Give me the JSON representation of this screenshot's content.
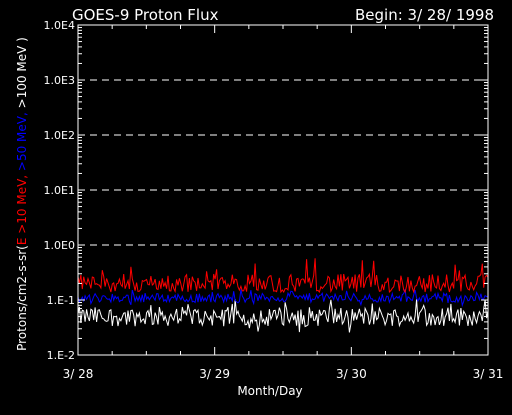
{
  "chart_data": {
    "type": "line",
    "title": "GOES-9  Proton Flux",
    "begin_label": "Begin:  3/ 28/ 1998",
    "xlabel": "Month/Day",
    "ylabel_parts": [
      {
        "text": "Protons/cm2-s-sr(",
        "color": "#ffffff"
      },
      {
        "text": "E >10 MeV, ",
        "color": "#ff0000"
      },
      {
        "text": ">50 MeV, ",
        "color": "#0000ff"
      },
      {
        "text": ">100 MeV )",
        "color": "#ffffff"
      }
    ],
    "x_ticks": [
      "3/ 28",
      "3/ 29",
      "3/ 30",
      "3/ 31"
    ],
    "xlim": [
      0,
      3
    ],
    "x_unit": "days after 3/28/1998",
    "y_scale": "log",
    "ylim": [
      0.01,
      10000
    ],
    "y_ticks": [
      {
        "value": 0.01,
        "label": "1.E-2"
      },
      {
        "value": 0.1,
        "label": "1.E-1"
      },
      {
        "value": 1,
        "label": "1.0E0"
      },
      {
        "value": 10,
        "label": "1.0E1"
      },
      {
        "value": 100,
        "label": "1.0E2"
      },
      {
        "value": 1000,
        "label": "1.0E3"
      },
      {
        "value": 10000,
        "label": "1.0E4"
      }
    ],
    "gridlines_dashed_at": [
      1,
      10,
      100,
      1000
    ],
    "series": [
      {
        "label": ">10 MeV",
        "color": "#ff0000",
        "x_start": 0,
        "x_end": 3,
        "n": 288,
        "typical": 0.2,
        "min": 0.14,
        "max": 0.6
      },
      {
        "label": ">50 MeV",
        "color": "#0000ff",
        "x_start": 0,
        "x_end": 3,
        "n": 288,
        "typical": 0.11,
        "min": 0.08,
        "max": 0.16
      },
      {
        "label": ">100 MeV",
        "color": "#ffffff",
        "x_start": 0,
        "x_end": 3,
        "n": 288,
        "typical": 0.05,
        "min": 0.025,
        "max": 0.11
      }
    ]
  }
}
